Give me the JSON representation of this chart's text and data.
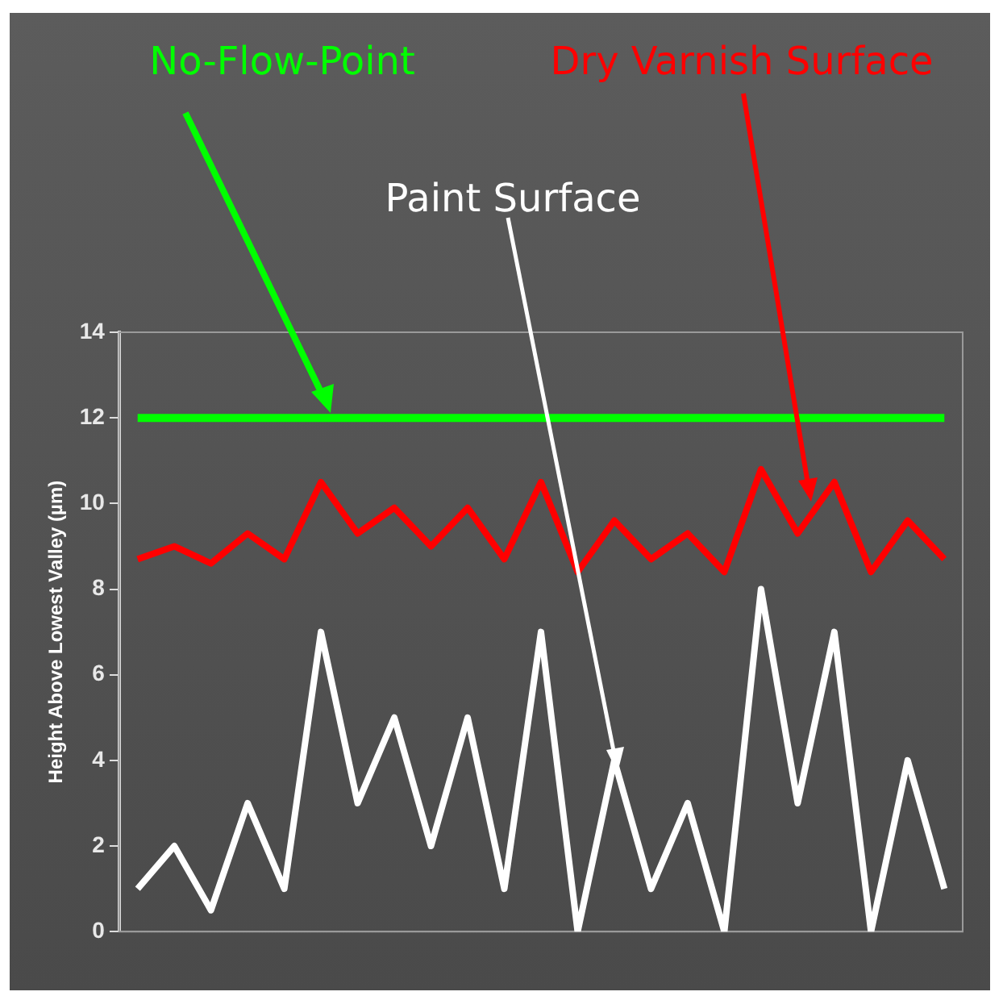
{
  "chart_data": {
    "type": "line",
    "ylabel": "Height Above Lowest Valley (µm)",
    "categories": [
      null,
      null,
      null,
      null,
      null,
      null,
      null,
      null,
      null,
      null,
      null,
      null,
      null,
      null,
      null,
      null,
      null,
      null,
      null,
      null,
      null,
      null,
      null
    ],
    "series": [
      {
        "name": "No-Flow-Point",
        "color": "#00ff00",
        "values": [
          12,
          12,
          12,
          12,
          12,
          12,
          12,
          12,
          12,
          12,
          12,
          12,
          12,
          12,
          12,
          12,
          12,
          12,
          12,
          12,
          12,
          12,
          12
        ]
      },
      {
        "name": "Dry Varnish Surface",
        "color": "#ff0000",
        "values": [
          8.7,
          9,
          8.6,
          9.3,
          8.7,
          10.5,
          9.3,
          9.9,
          9,
          9.9,
          8.7,
          10.5,
          8.4,
          9.6,
          8.7,
          9.3,
          8.4,
          10.8,
          9.3,
          10.5,
          8.4,
          9.6,
          8.7
        ]
      },
      {
        "name": "Paint Surface",
        "color": "#ffffff",
        "values": [
          1,
          2,
          0.5,
          3,
          1,
          7,
          3,
          5,
          2,
          5,
          1,
          7,
          0,
          4,
          1,
          3,
          0,
          8,
          3,
          7,
          0,
          4,
          1
        ]
      }
    ],
    "ylim": [
      0,
      14
    ],
    "yticks": [
      0,
      2,
      4,
      6,
      8,
      10,
      12,
      14
    ],
    "grid": false,
    "legend": false,
    "marker": "none",
    "line_style": "solid"
  }
}
